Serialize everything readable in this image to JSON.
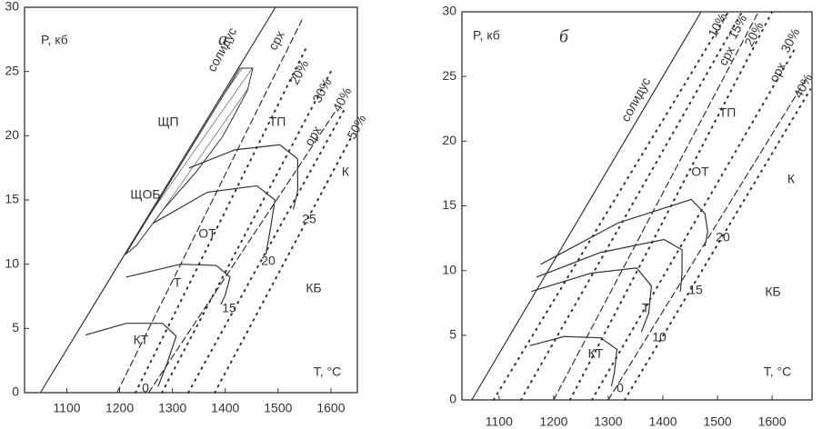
{
  "chart_data": [
    {
      "type": "phase-diagram",
      "title": "а",
      "ylabel": "P, кб",
      "xlabel": "T, °C",
      "color": "#333333",
      "xlim": [
        1020,
        1650
      ],
      "ylim": [
        0,
        30
      ],
      "xticks": [
        1100,
        1200,
        1300,
        1400,
        1500,
        1600
      ],
      "yticks": [
        0,
        5,
        10,
        15,
        20,
        25,
        30
      ],
      "series": [
        {
          "style": "solid",
          "x": [
            1050,
            1495
          ],
          "values": [
            0,
            30
          ]
        },
        {
          "style": "dashed",
          "x": [
            1195,
            1545
          ],
          "values": [
            0,
            29
          ]
        },
        {
          "style": "dashed",
          "x": [
            1255,
            1610
          ],
          "values": [
            0,
            22
          ]
        },
        {
          "style": "dotted",
          "x": [
            1230,
            1555
          ],
          "values": [
            0,
            27
          ]
        },
        {
          "style": "dotted",
          "x": [
            1280,
            1600
          ],
          "values": [
            0,
            25
          ]
        },
        {
          "style": "dotted",
          "x": [
            1330,
            1625
          ],
          "values": [
            0,
            22
          ]
        },
        {
          "style": "dotted",
          "x": [
            1380,
            1640
          ],
          "values": [
            0,
            20
          ]
        },
        {
          "style": "solid",
          "x": [
            1136,
            1213,
            1281,
            1307,
            1290,
            1273
          ],
          "values": [
            4.5,
            5.4,
            5.4,
            4.4,
            2.3,
            0.5
          ]
        },
        {
          "style": "solid",
          "x": [
            1213,
            1315,
            1383,
            1409,
            1400,
            1392
          ],
          "values": [
            9.0,
            10.0,
            9.9,
            9.0,
            7.6,
            6.9
          ]
        },
        {
          "style": "solid",
          "x": [
            1264,
            1366,
            1460,
            1494,
            1486,
            1477
          ],
          "values": [
            13.2,
            15.6,
            16.1,
            15.0,
            12.9,
            10.8
          ]
        },
        {
          "style": "solid",
          "x": [
            1332,
            1418,
            1503,
            1537,
            1537,
            1529
          ],
          "values": [
            17.5,
            18.9,
            19.3,
            18.2,
            15.7,
            14.3
          ]
        }
      ],
      "labels": [
        "солидус",
        "срх",
        "20%",
        "30%",
        "40%",
        "50%",
        "ЩП",
        "ТП",
        "орх",
        "К",
        "ЩОБ",
        "ОТ",
        "Т",
        "КБ",
        "КТ",
        "25",
        "20",
        "15",
        "0"
      ]
    },
    {
      "type": "phase-diagram",
      "title": "б",
      "ylabel": "P, кб",
      "xlabel": "T, °C",
      "color": "#333333",
      "xlim": [
        1032,
        1673
      ],
      "ylim": [
        0,
        30
      ],
      "xticks": [
        1100,
        1200,
        1300,
        1400,
        1500,
        1600
      ],
      "yticks": [
        0,
        5,
        10,
        15,
        20,
        25,
        30
      ],
      "series": [
        {
          "style": "solid",
          "x": [
            1050,
            1470
          ],
          "values": [
            0,
            30
          ]
        },
        {
          "style": "dashed",
          "x": [
            1200,
            1575
          ],
          "values": [
            0,
            30
          ]
        },
        {
          "style": "dashed",
          "x": [
            1300,
            1665
          ],
          "values": [
            0,
            25
          ]
        },
        {
          "style": "dotted",
          "x": [
            1090,
            1520
          ],
          "values": [
            0,
            30
          ]
        },
        {
          "style": "dotted",
          "x": [
            1140,
            1545
          ],
          "values": [
            0,
            30
          ]
        },
        {
          "style": "dotted",
          "x": [
            1230,
            1600
          ],
          "values": [
            0,
            30
          ]
        },
        {
          "style": "dotted",
          "x": [
            1270,
            1640
          ],
          "values": [
            0,
            27
          ]
        },
        {
          "style": "dotted",
          "x": [
            1330,
            1670
          ],
          "values": [
            0,
            24
          ]
        },
        {
          "style": "solid",
          "x": [
            1157,
            1219,
            1286,
            1316,
            1311,
            1306
          ],
          "values": [
            4.2,
            4.9,
            4.8,
            3.9,
            2.1,
            1.1
          ]
        },
        {
          "style": "solid",
          "x": [
            1160,
            1269,
            1352,
            1379,
            1374,
            1361
          ],
          "values": [
            8.4,
            9.8,
            10.2,
            8.8,
            6.7,
            5.3
          ]
        },
        {
          "style": "solid",
          "x": [
            1169,
            1286,
            1402,
            1435,
            1435,
            1432
          ],
          "values": [
            9.5,
            11.4,
            12.4,
            11.6,
            9.8,
            8.4
          ]
        },
        {
          "style": "solid",
          "x": [
            1177,
            1319,
            1452,
            1477,
            1482,
            1477
          ],
          "values": [
            10.5,
            13.7,
            15.5,
            14.4,
            13.0,
            11.9
          ]
        }
      ],
      "labels": [
        "солидус",
        "10%",
        "15%",
        "срх",
        "20%",
        "орх",
        "30%",
        "ТП",
        "40%",
        "ОТ",
        "К",
        "КБ",
        "Т",
        "КТ",
        "0",
        "10",
        "15",
        "20"
      ]
    }
  ]
}
